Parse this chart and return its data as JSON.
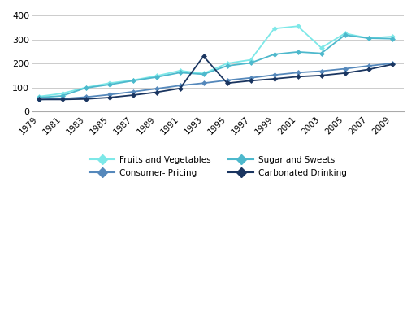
{
  "years": [
    1979,
    1981,
    1983,
    1985,
    1987,
    1989,
    1991,
    1993,
    1995,
    1997,
    1999,
    2001,
    2003,
    2005,
    2007,
    2009
  ],
  "fruits_and_vegetables": [
    62,
    75,
    100,
    118,
    130,
    148,
    170,
    158,
    200,
    215,
    345,
    355,
    265,
    325,
    305,
    312
  ],
  "sugar_and_sweets": [
    58,
    65,
    98,
    112,
    128,
    143,
    162,
    155,
    190,
    202,
    238,
    248,
    242,
    318,
    305,
    303
  ],
  "consumer_pricing": [
    50,
    53,
    60,
    70,
    82,
    95,
    108,
    118,
    130,
    140,
    152,
    162,
    168,
    178,
    190,
    200
  ],
  "carbonated_drinking": [
    50,
    50,
    52,
    58,
    68,
    80,
    96,
    230,
    118,
    128,
    136,
    145,
    150,
    160,
    175,
    196
  ],
  "line_colors": {
    "fruits_and_vegetables": "#7de8e8",
    "sugar_and_sweets": "#4db8cc",
    "consumer_pricing": "#5588bb",
    "carbonated_drinking": "#1a3560"
  },
  "legend_labels": {
    "fruits_and_vegetables": "Fruits and Vegetables",
    "sugar_and_sweets": "Sugar and Sweets",
    "consumer_pricing": "Consumer- Pricing",
    "carbonated_drinking": "Carbonated Drinking"
  },
  "ylim": [
    0,
    400
  ],
  "yticks": [
    0,
    100,
    200,
    300,
    400
  ],
  "background_color": "#ffffff",
  "grid_color": "#cccccc"
}
